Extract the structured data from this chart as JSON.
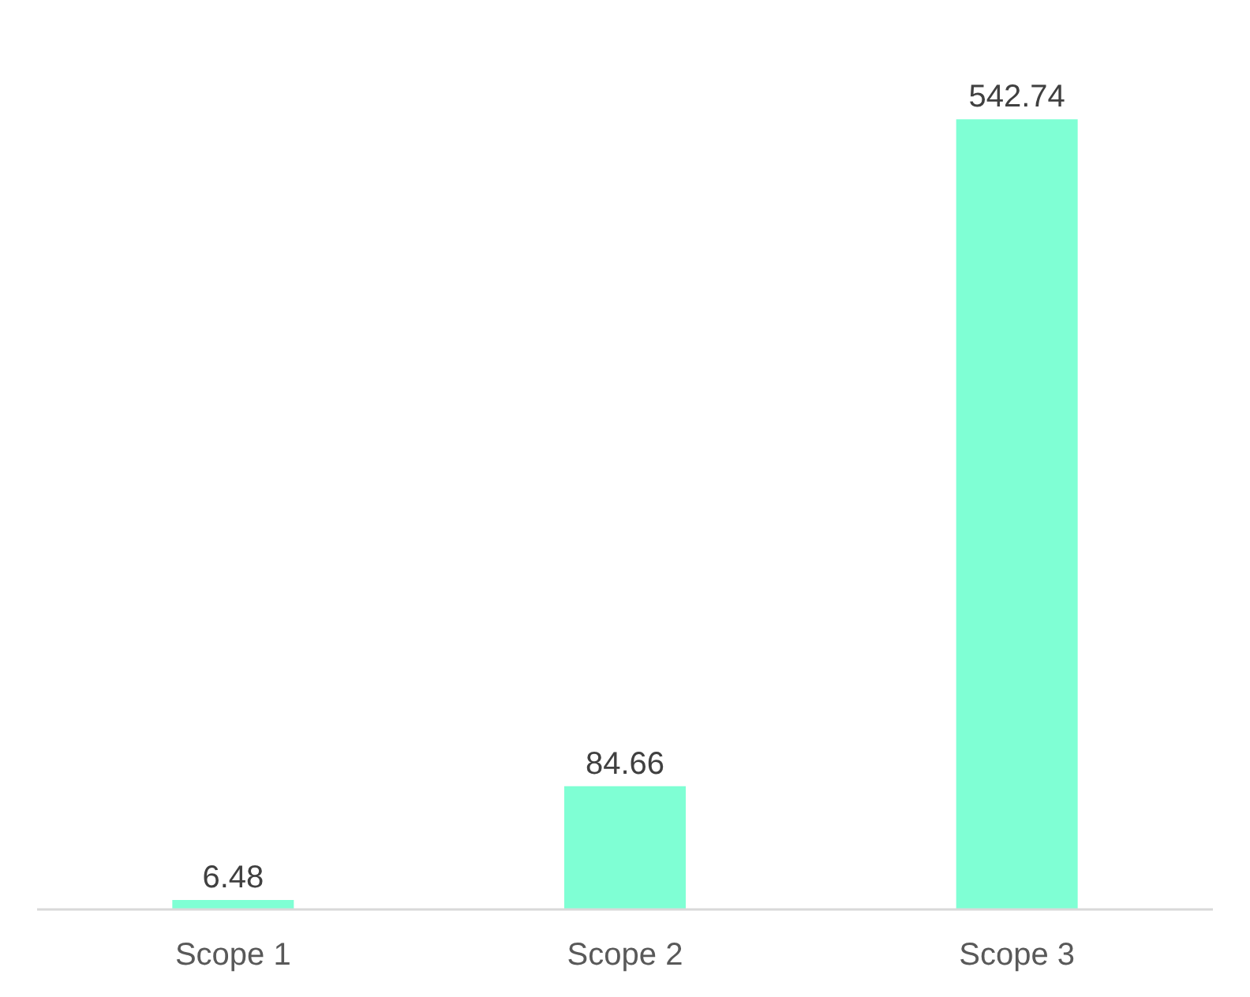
{
  "chart_data": {
    "type": "bar",
    "categories": [
      "Scope 1",
      "Scope 2",
      "Scope 3"
    ],
    "values": [
      6.48,
      84.66,
      542.74
    ],
    "color": "#7fffd4",
    "data_labels": true,
    "grid": false
  }
}
